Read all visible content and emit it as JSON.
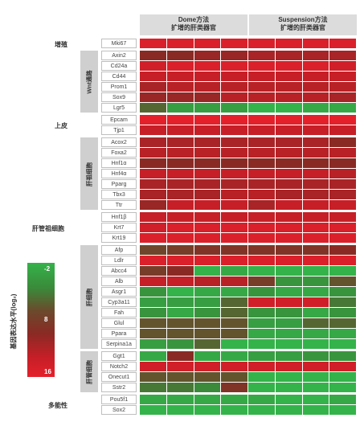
{
  "header": {
    "dome": "Dome方法\n扩增的肝类器官",
    "suspension": "Suspension方法\n扩增的肝类器官"
  },
  "legend": {
    "title": "基因表达水平(log₂)",
    "ticks": [
      "-2",
      "8",
      "16"
    ]
  },
  "colors": {
    "green": "#34b34a",
    "red": "#e4202b",
    "mid": "#7a3e2a"
  },
  "chart_data": {
    "type": "heatmap",
    "columns": 8,
    "column_groups": [
      "Dome方法 扩增的肝类器官",
      "Suspension方法 扩增的肝类器官"
    ],
    "color_scale": {
      "min": -2,
      "max": 16,
      "low_color": "green",
      "high_color": "red"
    },
    "categories": [
      {
        "name": "增殖",
        "rows": [
          [
            "Mki67",
            [
              15,
              15,
              15,
              15,
              15,
              15,
              15,
              15
            ]
          ]
        ]
      },
      {
        "name": "Wnt通路",
        "rows": [
          [
            "Axin2",
            [
              9,
              9,
              10,
              10,
              11,
              11,
              11,
              11
            ]
          ],
          [
            "Cd24a",
            [
              14,
              15,
              15,
              15,
              15,
              15,
              15,
              14
            ]
          ],
          [
            "Cd44",
            [
              13,
              13,
              13,
              13,
              13,
              13,
              13,
              13
            ]
          ],
          [
            "Prom1",
            [
              11,
              12,
              12,
              12,
              12,
              12,
              12,
              12
            ]
          ],
          [
            "Sox9",
            [
              10,
              10,
              10,
              12,
              12,
              12,
              12,
              11
            ]
          ],
          [
            "Lgr5",
            [
              4,
              0,
              0,
              0,
              -2,
              -2,
              -1,
              -1
            ]
          ]
        ]
      },
      {
        "name": "上皮",
        "rows": [
          [
            "Epcam",
            [
              16,
              16,
              16,
              16,
              16,
              16,
              16,
              16
            ]
          ],
          [
            "Tjp1",
            [
              13,
              13,
              13,
              13,
              13,
              13,
              13,
              13
            ]
          ]
        ]
      },
      {
        "name": "肝祖细胞",
        "rows": [
          [
            "Acox2",
            [
              11,
              11,
              11,
              11,
              11,
              11,
              11,
              9
            ]
          ],
          [
            "Foxa2",
            [
              12,
              12,
              12,
              12,
              12,
              12,
              12,
              12
            ]
          ],
          [
            "Hnf1α",
            [
              9,
              9,
              9,
              9,
              9,
              9,
              9,
              9
            ]
          ],
          [
            "Hnf4α",
            [
              13,
              13,
              13,
              13,
              13,
              13,
              13,
              12
            ]
          ],
          [
            "Pparg",
            [
              11,
              11,
              11,
              11,
              11,
              11,
              11,
              11
            ]
          ],
          [
            "Tbx3",
            [
              11,
              11,
              11,
              12,
              12,
              11,
              11,
              11
            ]
          ],
          [
            "Ttr",
            [
              10,
              13,
              13,
              13,
              11,
              13,
              13,
              13
            ]
          ]
        ]
      },
      {
        "name": "肝管祖细胞",
        "rows": [
          [
            "Hnf1β",
            [
              13,
              13,
              13,
              13,
              13,
              13,
              13,
              13
            ]
          ],
          [
            "Krt7",
            [
              14,
              15,
              15,
              15,
              15,
              15,
              15,
              15
            ]
          ],
          [
            "Krt19",
            [
              15,
              15,
              15,
              15,
              15,
              15,
              15,
              15
            ]
          ]
        ]
      },
      {
        "name": "肝细胞",
        "rows": [
          [
            "Afp",
            [
              6,
              7,
              8,
              8,
              8,
              8,
              8,
              9
            ]
          ],
          [
            "Ldlr",
            [
              15,
              15,
              15,
              15,
              15,
              15,
              15,
              15
            ]
          ],
          [
            "Abcc4",
            [
              7,
              9,
              -2,
              -1,
              -2,
              -2,
              -2,
              -2
            ]
          ],
          [
            "Alb",
            [
              13,
              13,
              12,
              12,
              7,
              1,
              1,
              5
            ]
          ],
          [
            "Asgr1",
            [
              1,
              -2,
              -1,
              -1,
              1,
              -1,
              -1,
              1
            ]
          ],
          [
            "Cyp3a11",
            [
              0,
              0,
              0,
              4,
              14,
              14,
              14,
              3
            ]
          ],
          [
            "Fah",
            [
              1,
              -1,
              1,
              4,
              1,
              1,
              -1,
              1
            ]
          ],
          [
            "Glul",
            [
              5,
              5,
              5,
              5,
              0,
              0,
              4,
              4
            ]
          ],
          [
            "Ppara",
            [
              5,
              5,
              5,
              5,
              -1,
              -1,
              -1,
              -1
            ]
          ],
          [
            "Serpina1a",
            [
              0,
              1,
              4,
              -2,
              -2,
              -2,
              -2,
              -2
            ]
          ]
        ]
      },
      {
        "name": "肝管细胞",
        "rows": [
          [
            "Ggt1",
            [
              -1,
              9,
              -1,
              -1,
              0,
              0,
              1,
              1
            ]
          ],
          [
            "Notch2",
            [
              14,
              14,
              14,
              14,
              14,
              14,
              14,
              14
            ]
          ],
          [
            "Onecut1",
            [
              5,
              5,
              5,
              5,
              -2,
              -2,
              -2,
              -2
            ]
          ],
          [
            "Sstr2",
            [
              3,
              3,
              2,
              8,
              -2,
              -2,
              -2,
              -2
            ]
          ]
        ]
      },
      {
        "name": "多能性",
        "rows": [
          [
            "Pou5f1",
            [
              -1,
              -1,
              -1,
              -1,
              -1,
              -2,
              -2,
              -1
            ]
          ],
          [
            "Sox2",
            [
              -2,
              -2,
              -2,
              -2,
              -2,
              -2,
              -2,
              -2
            ]
          ]
        ]
      }
    ]
  }
}
